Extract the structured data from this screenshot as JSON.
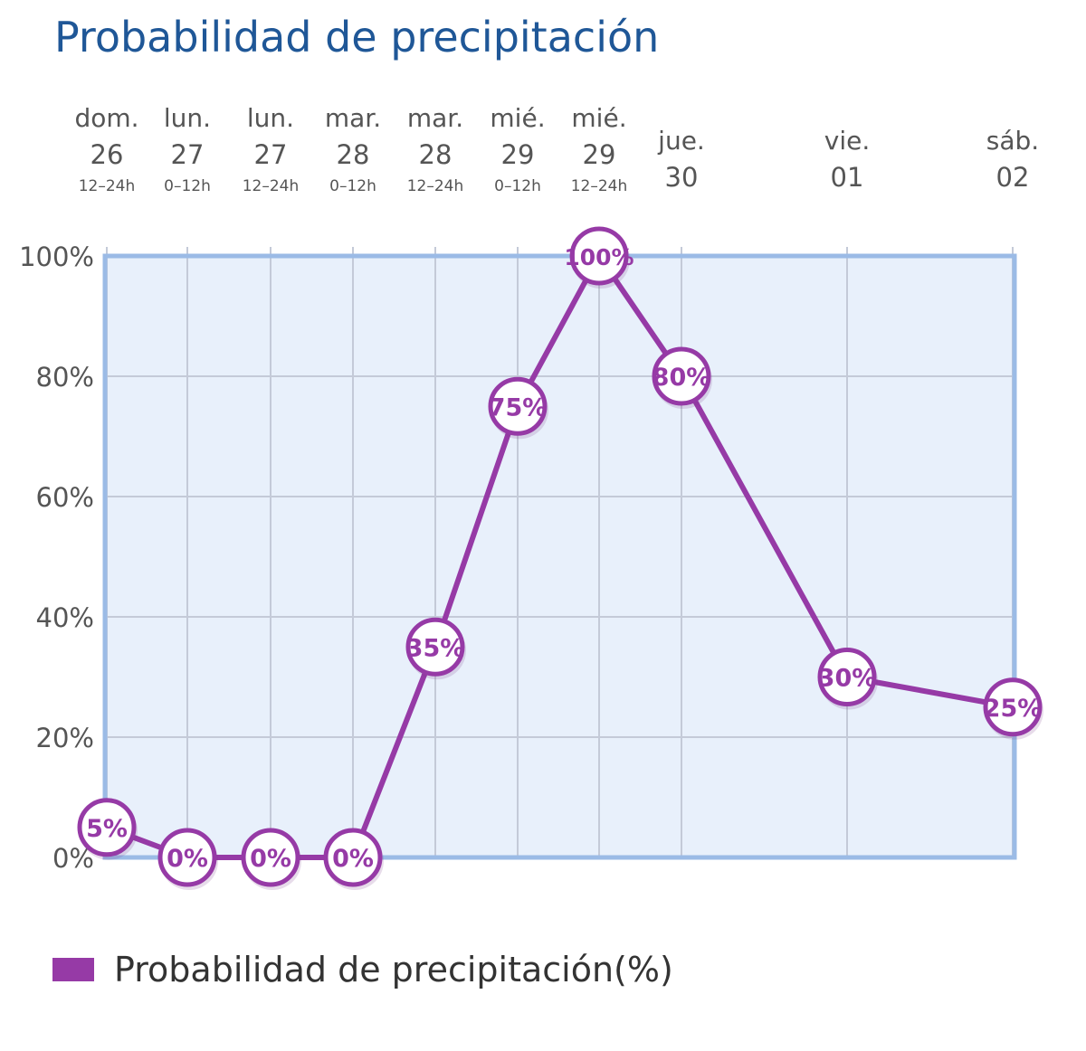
{
  "title": "Probabilidad de precipitación",
  "chart_data": {
    "type": "line",
    "x": [
      {
        "day": "dom.",
        "date": "26",
        "period": "12–24h"
      },
      {
        "day": "lun.",
        "date": "27",
        "period": "0–12h"
      },
      {
        "day": "lun.",
        "date": "27",
        "period": "12–24h"
      },
      {
        "day": "mar.",
        "date": "28",
        "period": "0–12h"
      },
      {
        "day": "mar.",
        "date": "28",
        "period": "12–24h"
      },
      {
        "day": "mié.",
        "date": "29",
        "period": "0–12h"
      },
      {
        "day": "mié.",
        "date": "29",
        "period": "12–24h"
      },
      {
        "day": "jue.",
        "date": "30",
        "period": ""
      },
      {
        "day": "vie.",
        "date": "01",
        "period": ""
      },
      {
        "day": "sáb.",
        "date": "02",
        "period": ""
      }
    ],
    "series": [
      {
        "name": "Probabilidad de precipitación(%)",
        "values": [
          5,
          0,
          0,
          0,
          35,
          75,
          100,
          80,
          30,
          25
        ],
        "labels": [
          "5%",
          "0%",
          "0%",
          "0%",
          "35%",
          "75%",
          "100%",
          "80%",
          "30%",
          "25%"
        ],
        "color": "#963aa6"
      }
    ],
    "y_ticks": [
      "0%",
      "20%",
      "40%",
      "60%",
      "80%",
      "100%"
    ],
    "ylim": [
      0,
      100
    ],
    "grid": true,
    "legend_position": "bottom-left",
    "plot_background": "#e8f0fb",
    "frame_color": "#9bbbe6",
    "grid_color": "#c4cad8"
  }
}
